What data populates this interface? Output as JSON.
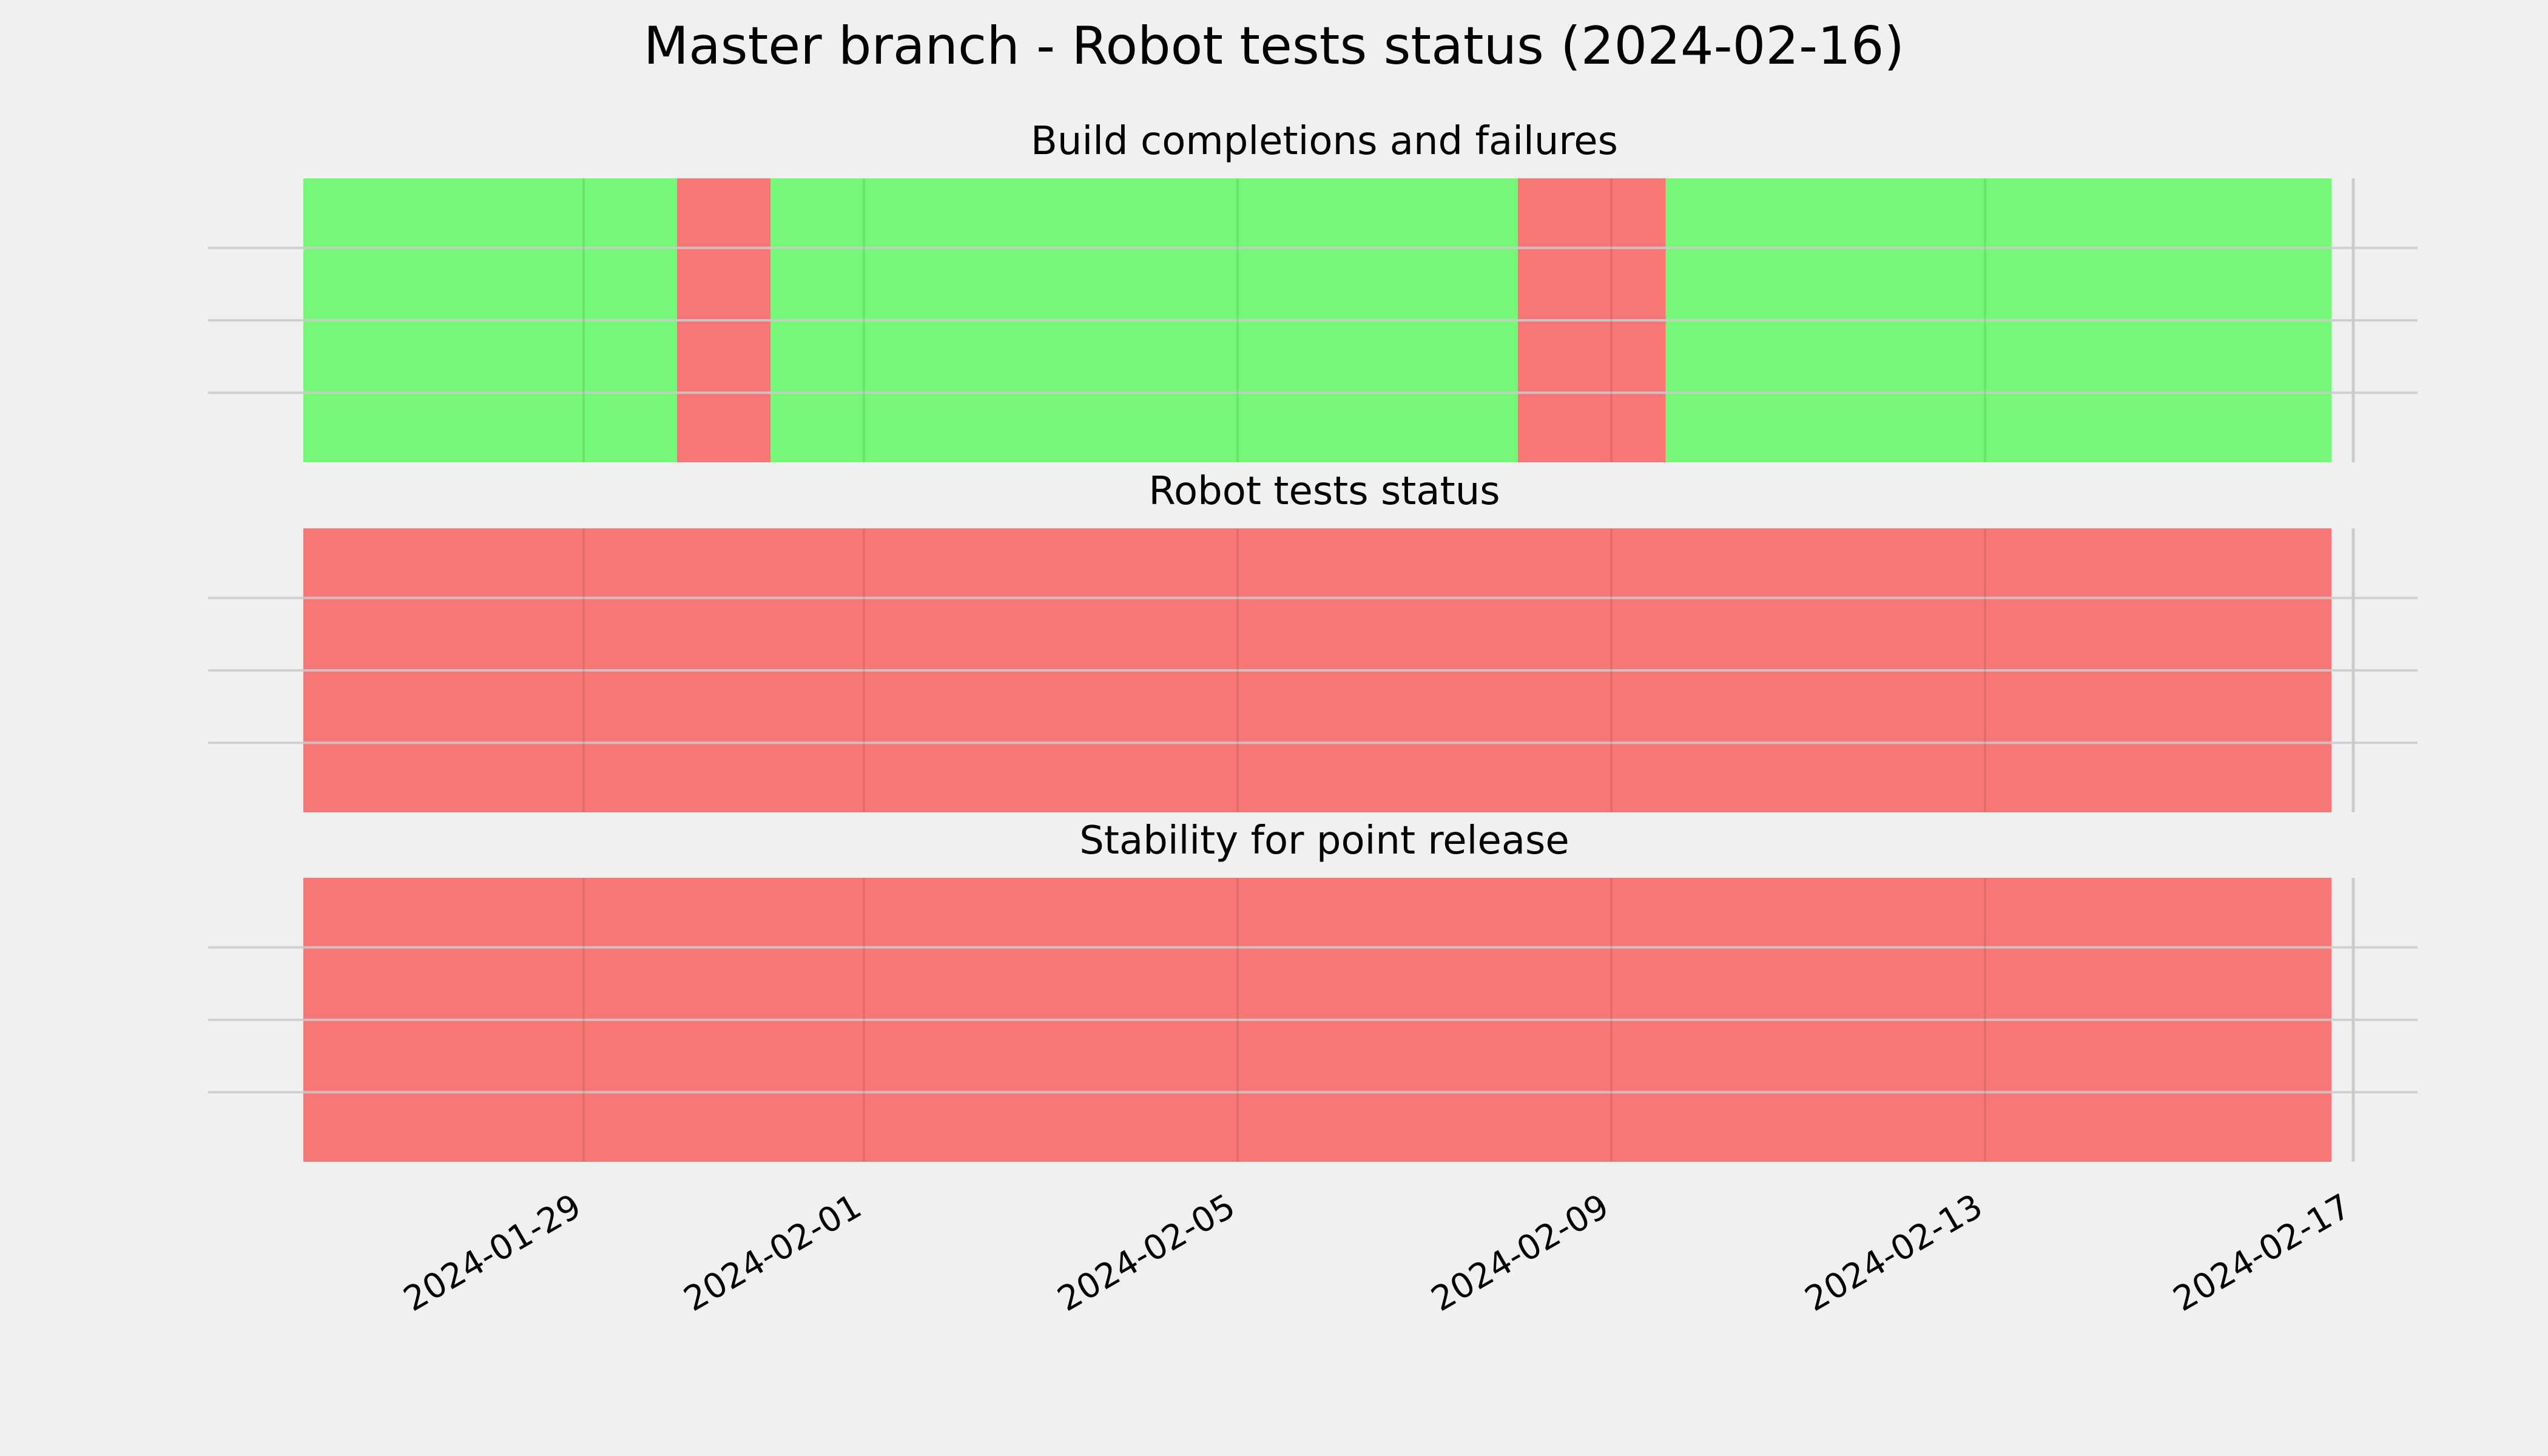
{
  "title": "Master branch - Robot tests status (2024-02-16)",
  "colors": {
    "background": "#f0f0f0",
    "pass": "#75f878",
    "fail": "#f77776",
    "grid": "#cbcbcb",
    "text": "#000000"
  },
  "chart_data": {
    "type": "timeline",
    "xlim": [
      "2024-01-26",
      "2024-02-17"
    ],
    "x_ticks": [
      "2024-01-29",
      "2024-02-01",
      "2024-02-05",
      "2024-02-09",
      "2024-02-13",
      "2024-02-17"
    ],
    "grid": true,
    "panels": [
      {
        "title": "Build completions and failures",
        "segments": [
          {
            "start": "2024-01-26",
            "end": "2024-01-30 00:00",
            "status": "pass"
          },
          {
            "start": "2024-01-30 00:00",
            "end": "2024-01-31 00:00",
            "status": "fail"
          },
          {
            "start": "2024-01-31 00:00",
            "end": "2024-02-08 00:00",
            "status": "pass"
          },
          {
            "start": "2024-02-08 00:00",
            "end": "2024-02-09 14:00",
            "status": "fail"
          },
          {
            "start": "2024-02-09 14:00",
            "end": "2024-02-16 17:00",
            "status": "pass"
          }
        ]
      },
      {
        "title": "Robot tests status",
        "segments": [
          {
            "start": "2024-01-26",
            "end": "2024-02-16 17:00",
            "status": "fail"
          }
        ]
      },
      {
        "title": "Stability for point release",
        "segments": [
          {
            "start": "2024-01-26",
            "end": "2024-02-16 17:00",
            "status": "fail"
          }
        ]
      }
    ]
  }
}
